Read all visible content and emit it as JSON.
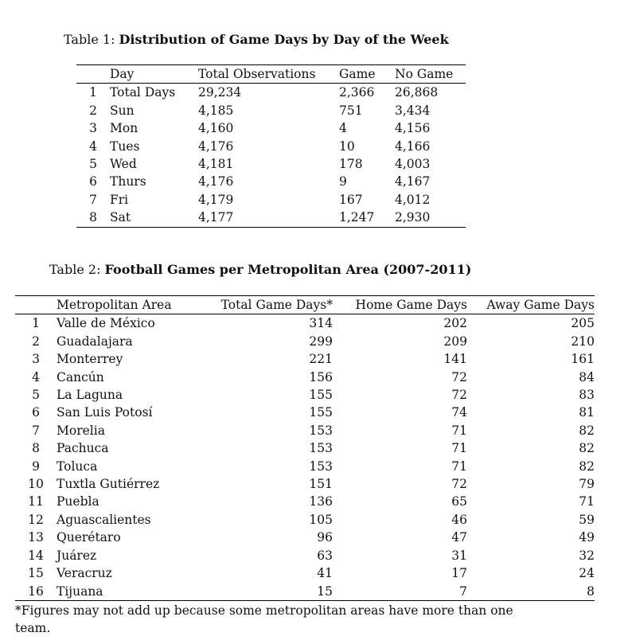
{
  "table1": {
    "label": "Table 1:",
    "title": "Distribution of Game Days by Day of the Week",
    "headers": [
      "",
      "Day",
      "Total Observations",
      "Game",
      "No Game"
    ],
    "rows": [
      [
        "1",
        "Total Days",
        "29,234",
        "2,366",
        "26,868"
      ],
      [
        "2",
        "Sun",
        "4,185",
        "751",
        "3,434"
      ],
      [
        "3",
        "Mon",
        "4,160",
        "4",
        "4,156"
      ],
      [
        "4",
        "Tues",
        "4,176",
        "10",
        "4,166"
      ],
      [
        "5",
        "Wed",
        "4,181",
        "178",
        "4,003"
      ],
      [
        "6",
        "Thurs",
        "4,176",
        "9",
        "4,167"
      ],
      [
        "7",
        "Fri",
        "4,179",
        "167",
        "4,012"
      ],
      [
        "8",
        "Sat",
        "4,177",
        "1,247",
        "2,930"
      ]
    ]
  },
  "table2": {
    "label": "Table 2:",
    "title": "Football Games per Metropolitan Area (2007-2011)",
    "headers": [
      "",
      "Metropolitan Area",
      "Total Game Days*",
      "Home Game Days",
      "Away Game Days"
    ],
    "rows": [
      [
        "1",
        "Valle de México",
        "314",
        "202",
        "205"
      ],
      [
        "2",
        "Guadalajara",
        "299",
        "209",
        "210"
      ],
      [
        "3",
        "Monterrey",
        "221",
        "141",
        "161"
      ],
      [
        "4",
        "Cancún",
        "156",
        "72",
        "84"
      ],
      [
        "5",
        "La Laguna",
        "155",
        "72",
        "83"
      ],
      [
        "6",
        "San Luis Potosí",
        "155",
        "74",
        "81"
      ],
      [
        "7",
        "Morelia",
        "153",
        "71",
        "82"
      ],
      [
        "8",
        "Pachuca",
        "153",
        "71",
        "82"
      ],
      [
        "9",
        "Toluca",
        "153",
        "71",
        "82"
      ],
      [
        "10",
        "Tuxtla Gutiérrez",
        "151",
        "72",
        "79"
      ],
      [
        "11",
        "Puebla",
        "136",
        "65",
        "71"
      ],
      [
        "12",
        "Aguascalientes",
        "105",
        "46",
        "59"
      ],
      [
        "13",
        "Querétaro",
        "96",
        "47",
        "49"
      ],
      [
        "14",
        "Juárez",
        "63",
        "31",
        "32"
      ],
      [
        "15",
        "Veracruz",
        "41",
        "17",
        "24"
      ],
      [
        "16",
        "Tijuana",
        "15",
        "7",
        "8"
      ]
    ],
    "footnote": "*Figures may not add up because some metropolitan areas have more than one team."
  }
}
